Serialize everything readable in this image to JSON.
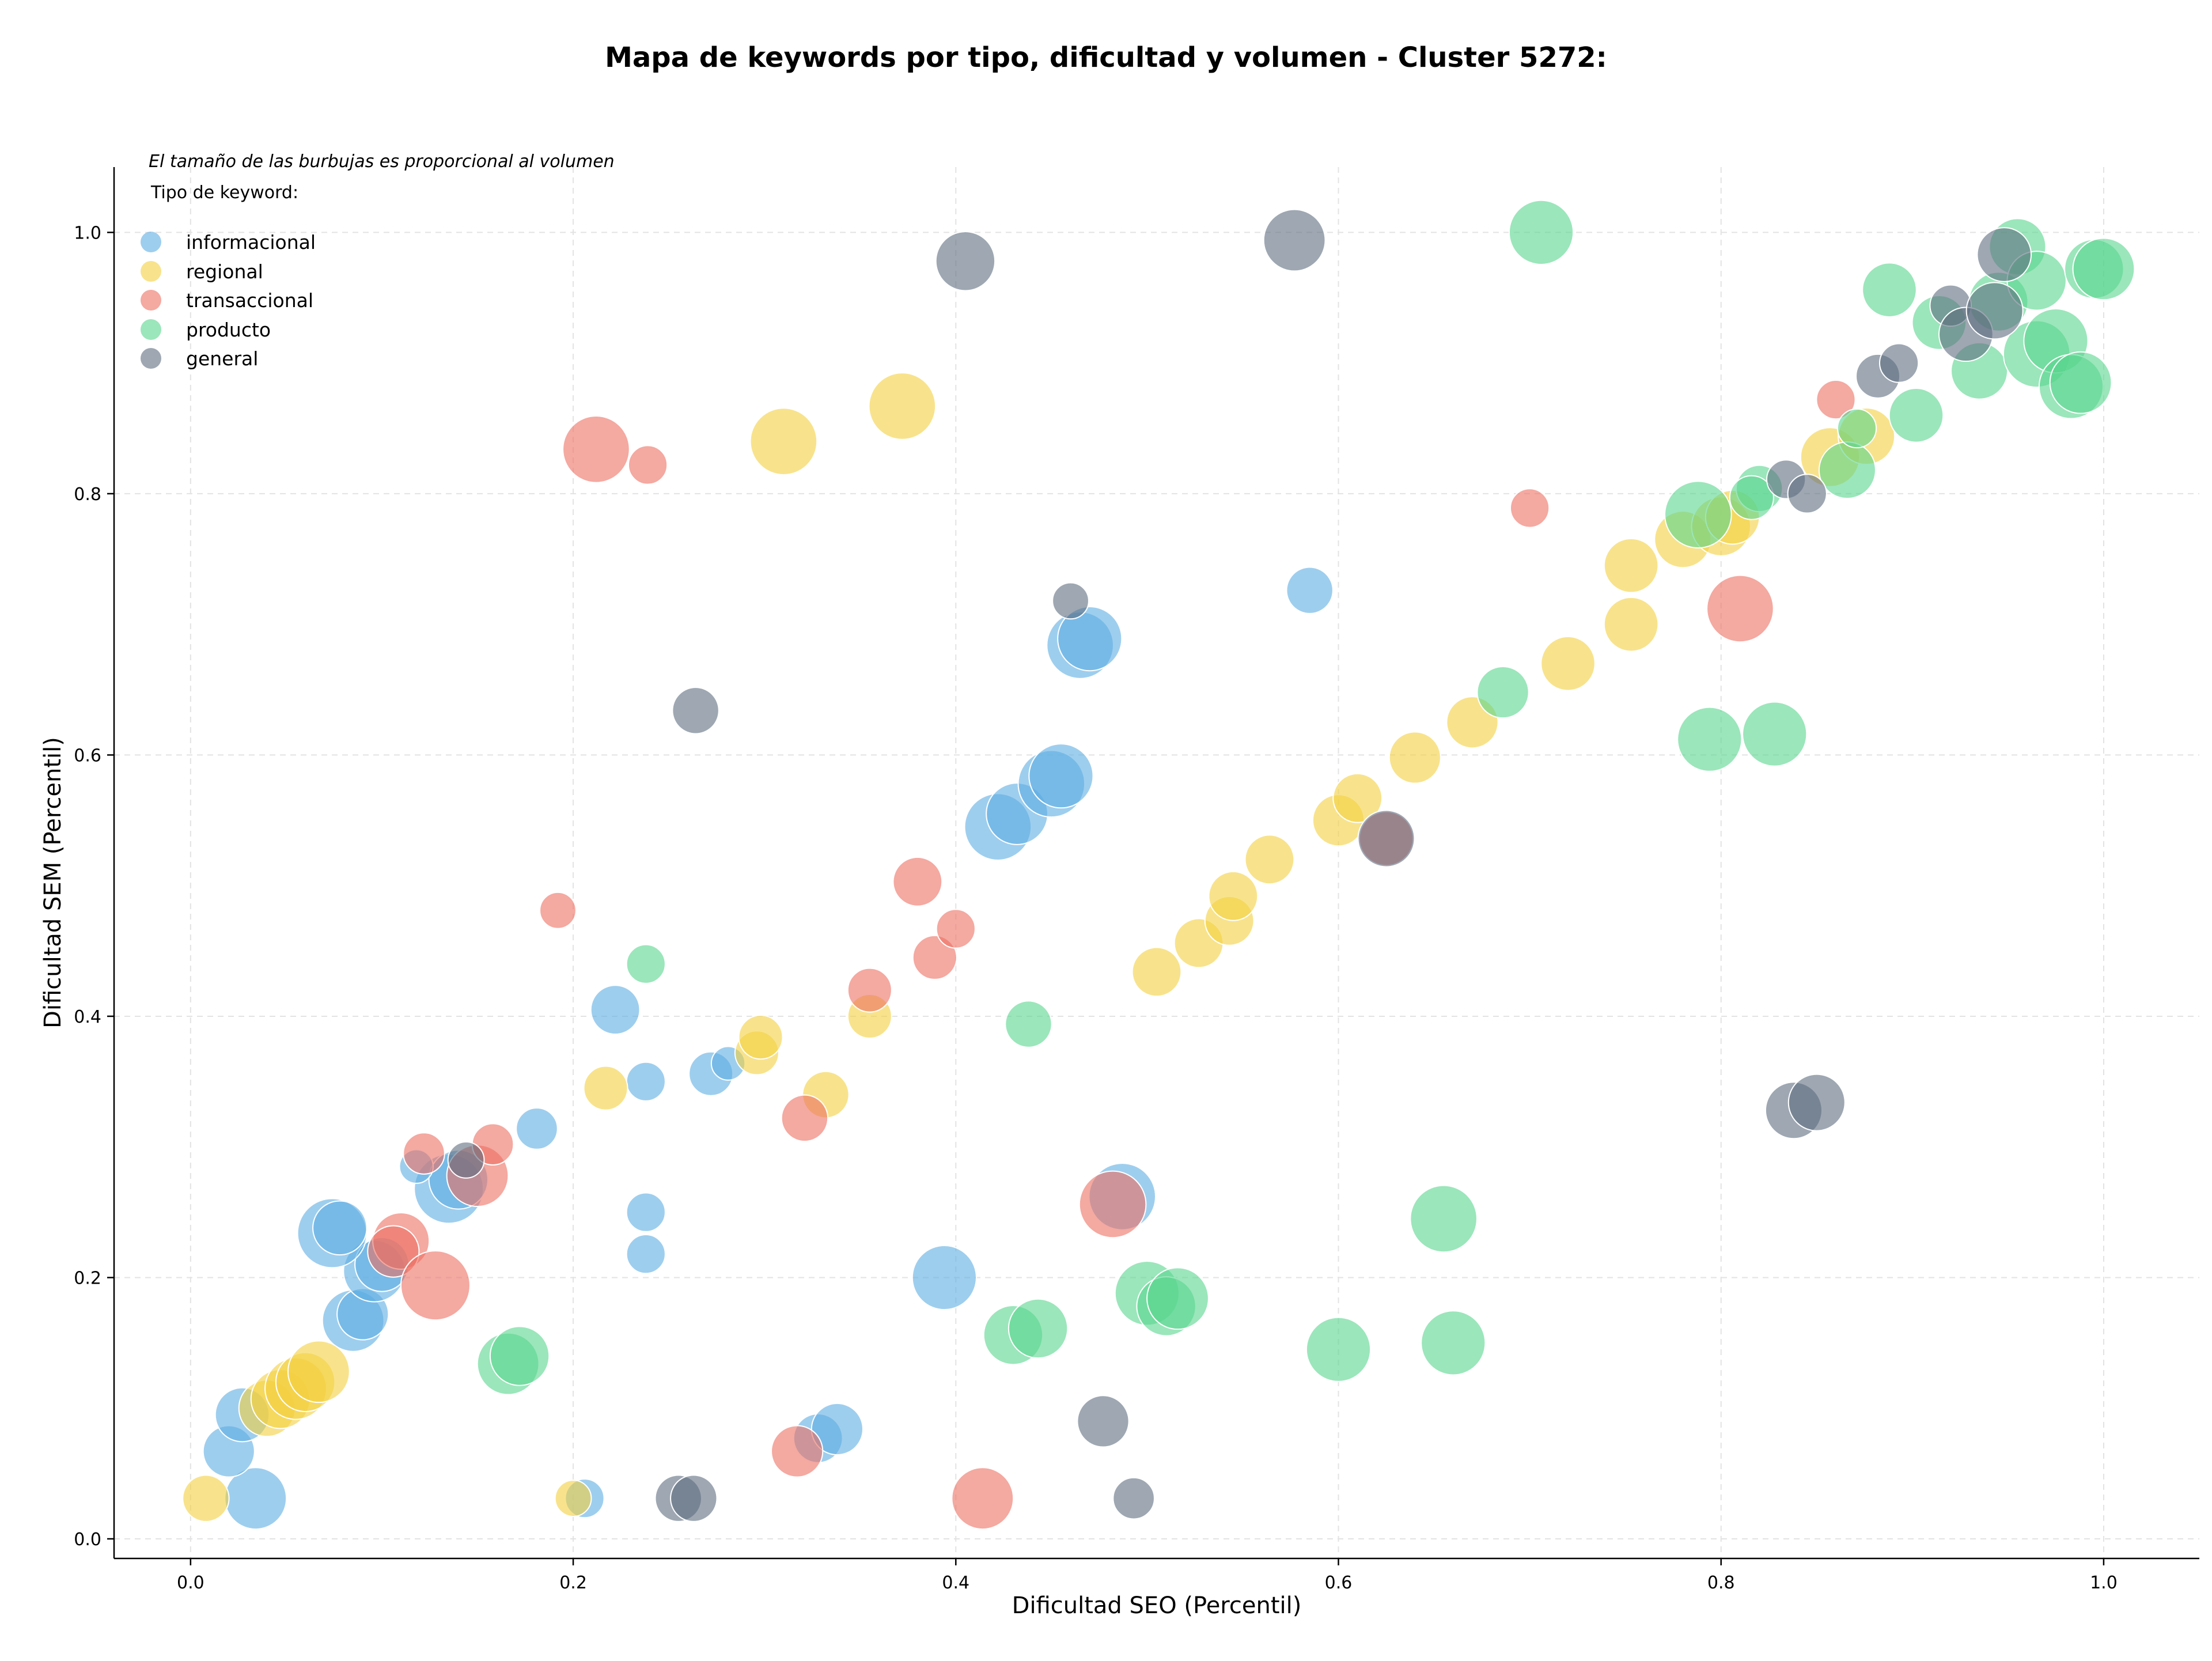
{
  "chart_data": {
    "type": "scatter",
    "title": "Mapa de keywords por tipo, dificultad y volumen - Cluster 5272:",
    "xlabel": "Dificultad SEO (Percentil)",
    "ylabel": "Dificultad SEM (Percentil)",
    "xlim": [
      -0.04,
      1.05
    ],
    "ylim": [
      -0.015,
      1.05
    ],
    "xticks": [
      0.0,
      0.2,
      0.4,
      0.6,
      0.8,
      1.0
    ],
    "yticks": [
      0.0,
      0.2,
      0.4,
      0.6,
      0.8,
      1.0
    ],
    "tick_labels_x": [
      "0.0",
      "0.2",
      "0.4",
      "0.6",
      "0.8",
      "1.0"
    ],
    "tick_labels_y": [
      "0.0",
      "0.2",
      "0.4",
      "0.6",
      "0.8",
      "1.0"
    ],
    "grid": true,
    "legend": {
      "placement": "top-left",
      "note": "El tamaño de las burbujas es proporcional al volumen",
      "header": "Tipo de keyword:",
      "entries": [
        "informacional",
        "regional",
        "transaccional",
        "producto",
        "general"
      ]
    },
    "colors": {
      "informacional": "#5dade2",
      "regional": "#f4d03f",
      "transaccional": "#ec7063",
      "producto": "#58d68d",
      "general": "#5d6d7e"
    },
    "series": [
      {
        "name": "informacional",
        "points": [
          {
            "x": 0.034,
            "y": 0.031,
            "size": 0.85
          },
          {
            "x": 0.02,
            "y": 0.067,
            "size": 0.65
          },
          {
            "x": 0.027,
            "y": 0.095,
            "size": 0.7
          },
          {
            "x": 0.085,
            "y": 0.167,
            "size": 0.85
          },
          {
            "x": 0.09,
            "y": 0.172,
            "size": 0.65
          },
          {
            "x": 0.096,
            "y": 0.205,
            "size": 0.85
          },
          {
            "x": 0.1,
            "y": 0.21,
            "size": 0.7
          },
          {
            "x": 0.074,
            "y": 0.234,
            "size": 1.0
          },
          {
            "x": 0.078,
            "y": 0.238,
            "size": 0.7
          },
          {
            "x": 0.135,
            "y": 0.268,
            "size": 1.0
          },
          {
            "x": 0.14,
            "y": 0.275,
            "size": 0.8
          },
          {
            "x": 0.118,
            "y": 0.285,
            "size": 0.3
          },
          {
            "x": 0.181,
            "y": 0.314,
            "size": 0.45
          },
          {
            "x": 0.222,
            "y": 0.405,
            "size": 0.6
          },
          {
            "x": 0.238,
            "y": 0.35,
            "size": 0.4
          },
          {
            "x": 0.272,
            "y": 0.356,
            "size": 0.5
          },
          {
            "x": 0.281,
            "y": 0.364,
            "size": 0.3
          },
          {
            "x": 0.238,
            "y": 0.25,
            "size": 0.4
          },
          {
            "x": 0.238,
            "y": 0.218,
            "size": 0.4
          },
          {
            "x": 0.206,
            "y": 0.031,
            "size": 0.4
          },
          {
            "x": 0.328,
            "y": 0.077,
            "size": 0.6
          },
          {
            "x": 0.338,
            "y": 0.084,
            "size": 0.65
          },
          {
            "x": 0.394,
            "y": 0.2,
            "size": 0.9
          },
          {
            "x": 0.422,
            "y": 0.545,
            "size": 0.95
          },
          {
            "x": 0.432,
            "y": 0.555,
            "size": 0.85
          },
          {
            "x": 0.45,
            "y": 0.578,
            "size": 0.95
          },
          {
            "x": 0.455,
            "y": 0.584,
            "size": 0.9
          },
          {
            "x": 0.465,
            "y": 0.684,
            "size": 0.95
          },
          {
            "x": 0.47,
            "y": 0.689,
            "size": 0.9
          },
          {
            "x": 0.487,
            "y": 0.262,
            "size": 0.95
          },
          {
            "x": 0.585,
            "y": 0.726,
            "size": 0.55
          }
        ]
      },
      {
        "name": "regional",
        "points": [
          {
            "x": 0.008,
            "y": 0.031,
            "size": 0.55
          },
          {
            "x": 0.04,
            "y": 0.1,
            "size": 0.75
          },
          {
            "x": 0.047,
            "y": 0.107,
            "size": 0.8
          },
          {
            "x": 0.055,
            "y": 0.115,
            "size": 0.85
          },
          {
            "x": 0.06,
            "y": 0.12,
            "size": 0.8
          },
          {
            "x": 0.067,
            "y": 0.128,
            "size": 0.85
          },
          {
            "x": 0.2,
            "y": 0.031,
            "size": 0.35
          },
          {
            "x": 0.217,
            "y": 0.345,
            "size": 0.5
          },
          {
            "x": 0.296,
            "y": 0.372,
            "size": 0.5
          },
          {
            "x": 0.298,
            "y": 0.384,
            "size": 0.5
          },
          {
            "x": 0.332,
            "y": 0.34,
            "size": 0.55
          },
          {
            "x": 0.355,
            "y": 0.4,
            "size": 0.5
          },
          {
            "x": 0.31,
            "y": 0.84,
            "size": 0.95
          },
          {
            "x": 0.372,
            "y": 0.867,
            "size": 0.95
          },
          {
            "x": 0.505,
            "y": 0.434,
            "size": 0.6
          },
          {
            "x": 0.527,
            "y": 0.456,
            "size": 0.6
          },
          {
            "x": 0.543,
            "y": 0.473,
            "size": 0.6
          },
          {
            "x": 0.545,
            "y": 0.492,
            "size": 0.6
          },
          {
            "x": 0.564,
            "y": 0.52,
            "size": 0.6
          },
          {
            "x": 0.6,
            "y": 0.55,
            "size": 0.65
          },
          {
            "x": 0.61,
            "y": 0.567,
            "size": 0.6
          },
          {
            "x": 0.64,
            "y": 0.598,
            "size": 0.65
          },
          {
            "x": 0.67,
            "y": 0.625,
            "size": 0.65
          },
          {
            "x": 0.72,
            "y": 0.67,
            "size": 0.7
          },
          {
            "x": 0.753,
            "y": 0.7,
            "size": 0.7
          },
          {
            "x": 0.753,
            "y": 0.745,
            "size": 0.7
          },
          {
            "x": 0.78,
            "y": 0.765,
            "size": 0.75
          },
          {
            "x": 0.8,
            "y": 0.775,
            "size": 0.8
          },
          {
            "x": 0.806,
            "y": 0.782,
            "size": 0.7
          },
          {
            "x": 0.857,
            "y": 0.828,
            "size": 0.8
          },
          {
            "x": 0.876,
            "y": 0.844,
            "size": 0.75
          }
        ]
      },
      {
        "name": "transaccional",
        "points": [
          {
            "x": 0.11,
            "y": 0.228,
            "size": 0.75
          },
          {
            "x": 0.106,
            "y": 0.22,
            "size": 0.65
          },
          {
            "x": 0.128,
            "y": 0.194,
            "size": 1.0
          },
          {
            "x": 0.122,
            "y": 0.295,
            "size": 0.45
          },
          {
            "x": 0.15,
            "y": 0.278,
            "size": 0.85
          },
          {
            "x": 0.158,
            "y": 0.302,
            "size": 0.45
          },
          {
            "x": 0.192,
            "y": 0.481,
            "size": 0.35
          },
          {
            "x": 0.212,
            "y": 0.834,
            "size": 0.95
          },
          {
            "x": 0.239,
            "y": 0.822,
            "size": 0.4
          },
          {
            "x": 0.317,
            "y": 0.067,
            "size": 0.65
          },
          {
            "x": 0.321,
            "y": 0.322,
            "size": 0.55
          },
          {
            "x": 0.355,
            "y": 0.42,
            "size": 0.5
          },
          {
            "x": 0.38,
            "y": 0.503,
            "size": 0.6
          },
          {
            "x": 0.389,
            "y": 0.445,
            "size": 0.5
          },
          {
            "x": 0.4,
            "y": 0.467,
            "size": 0.4
          },
          {
            "x": 0.414,
            "y": 0.031,
            "size": 0.85
          },
          {
            "x": 0.482,
            "y": 0.256,
            "size": 0.95
          },
          {
            "x": 0.625,
            "y": 0.536,
            "size": 0.7
          },
          {
            "x": 0.7,
            "y": 0.789,
            "size": 0.4
          },
          {
            "x": 0.81,
            "y": 0.712,
            "size": 0.95
          },
          {
            "x": 0.86,
            "y": 0.872,
            "size": 0.4
          }
        ]
      },
      {
        "name": "producto",
        "points": [
          {
            "x": 0.166,
            "y": 0.134,
            "size": 0.85
          },
          {
            "x": 0.172,
            "y": 0.14,
            "size": 0.8
          },
          {
            "x": 0.238,
            "y": 0.44,
            "size": 0.4
          },
          {
            "x": 0.43,
            "y": 0.156,
            "size": 0.8
          },
          {
            "x": 0.443,
            "y": 0.161,
            "size": 0.8
          },
          {
            "x": 0.438,
            "y": 0.394,
            "size": 0.55
          },
          {
            "x": 0.5,
            "y": 0.188,
            "size": 0.9
          },
          {
            "x": 0.51,
            "y": 0.178,
            "size": 0.8
          },
          {
            "x": 0.516,
            "y": 0.184,
            "size": 0.85
          },
          {
            "x": 0.6,
            "y": 0.145,
            "size": 0.9
          },
          {
            "x": 0.655,
            "y": 0.245,
            "size": 0.95
          },
          {
            "x": 0.66,
            "y": 0.15,
            "size": 0.9
          },
          {
            "x": 0.686,
            "y": 0.648,
            "size": 0.65
          },
          {
            "x": 0.706,
            "y": 1.0,
            "size": 0.9
          },
          {
            "x": 0.788,
            "y": 0.784,
            "size": 0.95
          },
          {
            "x": 0.794,
            "y": 0.612,
            "size": 0.9
          },
          {
            "x": 0.82,
            "y": 0.804,
            "size": 0.55
          },
          {
            "x": 0.816,
            "y": 0.797,
            "size": 0.5
          },
          {
            "x": 0.828,
            "y": 0.616,
            "size": 0.9
          },
          {
            "x": 0.866,
            "y": 0.818,
            "size": 0.75
          },
          {
            "x": 0.871,
            "y": 0.85,
            "size": 0.4
          },
          {
            "x": 0.888,
            "y": 0.956,
            "size": 0.7
          },
          {
            "x": 0.902,
            "y": 0.86,
            "size": 0.7
          },
          {
            "x": 0.914,
            "y": 0.931,
            "size": 0.7
          },
          {
            "x": 0.935,
            "y": 0.894,
            "size": 0.75
          },
          {
            "x": 0.945,
            "y": 0.947,
            "size": 0.8
          },
          {
            "x": 0.955,
            "y": 0.989,
            "size": 0.75
          },
          {
            "x": 0.965,
            "y": 0.963,
            "size": 0.8
          },
          {
            "x": 0.965,
            "y": 0.907,
            "size": 0.95
          },
          {
            "x": 0.975,
            "y": 0.917,
            "size": 0.9
          },
          {
            "x": 0.983,
            "y": 0.882,
            "size": 0.9
          },
          {
            "x": 0.988,
            "y": 0.885,
            "size": 0.85
          },
          {
            "x": 0.995,
            "y": 0.972,
            "size": 0.8
          },
          {
            "x": 1.0,
            "y": 0.972,
            "size": 0.85
          }
        ]
      },
      {
        "name": "general",
        "points": [
          {
            "x": 0.144,
            "y": 0.29,
            "size": 0.35
          },
          {
            "x": 0.255,
            "y": 0.031,
            "size": 0.55
          },
          {
            "x": 0.263,
            "y": 0.031,
            "size": 0.55
          },
          {
            "x": 0.264,
            "y": 0.634,
            "size": 0.55
          },
          {
            "x": 0.405,
            "y": 0.978,
            "size": 0.8
          },
          {
            "x": 0.46,
            "y": 0.718,
            "size": 0.35
          },
          {
            "x": 0.477,
            "y": 0.09,
            "size": 0.65
          },
          {
            "x": 0.493,
            "y": 0.031,
            "size": 0.45
          },
          {
            "x": 0.577,
            "y": 0.994,
            "size": 0.85
          },
          {
            "x": 0.625,
            "y": 0.536,
            "size": 0.75
          },
          {
            "x": 0.838,
            "y": 0.328,
            "size": 0.75
          },
          {
            "x": 0.85,
            "y": 0.334,
            "size": 0.75
          },
          {
            "x": 0.834,
            "y": 0.811,
            "size": 0.4
          },
          {
            "x": 0.845,
            "y": 0.8,
            "size": 0.4
          },
          {
            "x": 0.882,
            "y": 0.89,
            "size": 0.5
          },
          {
            "x": 0.893,
            "y": 0.9,
            "size": 0.4
          },
          {
            "x": 0.92,
            "y": 0.944,
            "size": 0.45
          },
          {
            "x": 0.928,
            "y": 0.922,
            "size": 0.7
          },
          {
            "x": 0.943,
            "y": 0.94,
            "size": 0.75
          },
          {
            "x": 0.948,
            "y": 0.983,
            "size": 0.7
          }
        ]
      }
    ]
  }
}
